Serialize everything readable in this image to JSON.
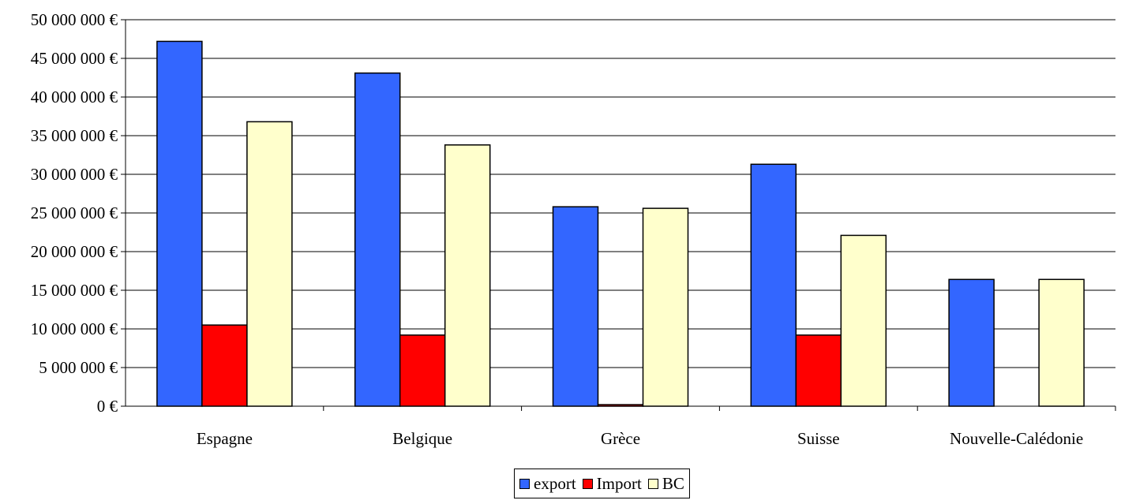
{
  "chart_data": {
    "type": "bar",
    "categories": [
      "Espagne",
      "Belgique",
      "Grèce",
      "Suisse",
      "Nouvelle-Calédonie"
    ],
    "series": [
      {
        "name": "export",
        "color": "#3366FF",
        "values": [
          47200000,
          43100000,
          25800000,
          31300000,
          16400000
        ]
      },
      {
        "name": "Import",
        "color": "#FF0000",
        "values": [
          10500000,
          9200000,
          200000,
          9200000,
          0
        ]
      },
      {
        "name": "BC",
        "color": "#FFFFCC",
        "values": [
          36800000,
          33800000,
          25600000,
          22100000,
          16400000
        ]
      }
    ],
    "ylim": [
      0,
      50000000
    ],
    "yticks": [
      0,
      5000000,
      10000000,
      15000000,
      20000000,
      25000000,
      30000000,
      35000000,
      40000000,
      45000000,
      50000000
    ],
    "ytick_labels": [
      "0 €",
      "5 000 000 €",
      "10 000 000 €",
      "15 000 000 €",
      "20 000 000 €",
      "25 000 000 €",
      "30 000 000 €",
      "35 000 000 €",
      "40 000 000 €",
      "45 000 000 €",
      "50 000 000 €"
    ],
    "grid": true,
    "legend_position": "bottom-center"
  }
}
